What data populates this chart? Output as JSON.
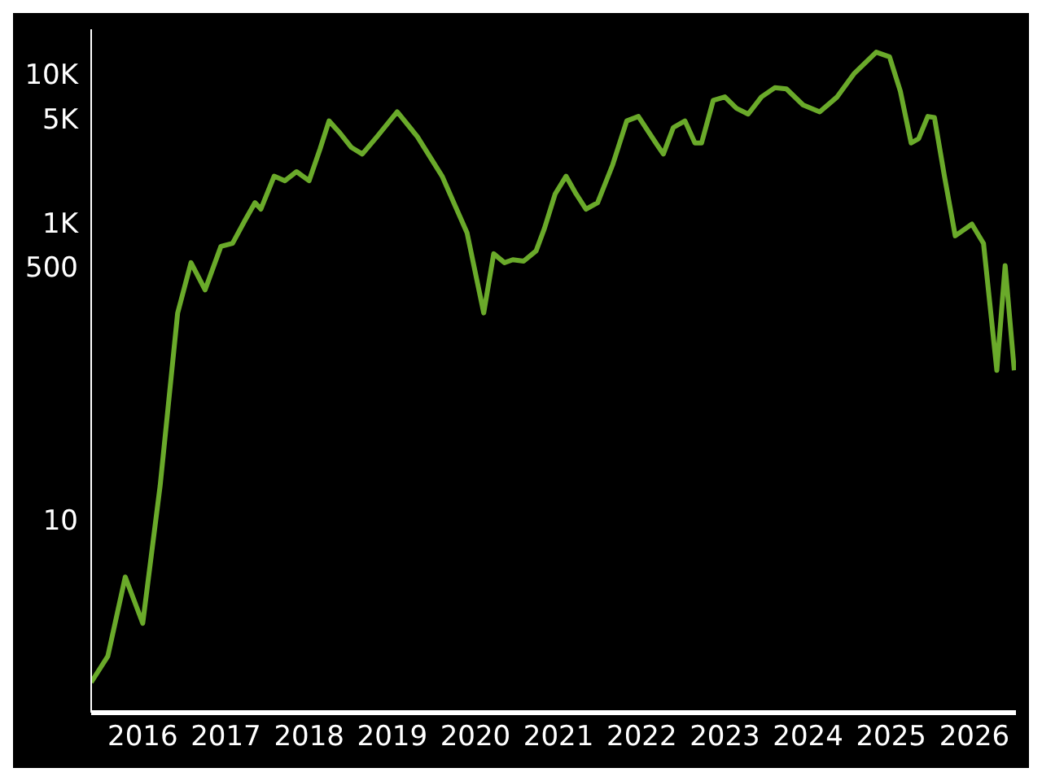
{
  "chart_data": {
    "type": "line",
    "log": "y",
    "grid": false,
    "marker": "none",
    "legend": false,
    "line_style": "solid",
    "x": [
      2015.38,
      2015.58,
      2015.79,
      2016.0,
      2016.21,
      2016.42,
      2016.58,
      2016.75,
      2016.94,
      2017.08,
      2017.23,
      2017.35,
      2017.42,
      2017.58,
      2017.71,
      2017.85,
      2018.0,
      2018.13,
      2018.24,
      2018.36,
      2018.51,
      2018.64,
      2018.82,
      2019.06,
      2019.3,
      2019.6,
      2019.9,
      2020.1,
      2020.22,
      2020.35,
      2020.45,
      2020.58,
      2020.73,
      2020.83,
      2020.96,
      2021.09,
      2021.21,
      2021.33,
      2021.47,
      2021.65,
      2021.82,
      2021.96,
      2022.17,
      2022.26,
      2022.38,
      2022.52,
      2022.64,
      2022.72,
      2022.86,
      2023.0,
      2023.14,
      2023.28,
      2023.44,
      2023.6,
      2023.74,
      2023.94,
      2024.14,
      2024.35,
      2024.55,
      2024.82,
      2024.98,
      2025.11,
      2025.24,
      2025.33,
      2025.44,
      2025.52,
      2025.64,
      2025.77,
      2025.97,
      2026.11,
      2026.27,
      2026.37,
      2026.48
    ],
    "series": [
      {
        "color": "#6aaa2a",
        "values": [
          0.8,
          1.2,
          4.1,
          2,
          17,
          246,
          536,
          352,
          690,
          723,
          1035,
          1360,
          1230,
          2050,
          1910,
          2200,
          1910,
          3100,
          4830,
          4070,
          3200,
          2890,
          3800,
          5560,
          3800,
          2050,
          851,
          246,
          616,
          536,
          561,
          549,
          644,
          911,
          1560,
          2050,
          1560,
          1230,
          1360,
          2440,
          4830,
          5180,
          3430,
          2890,
          4360,
          4830,
          3430,
          3430,
          6640,
          7010,
          5870,
          5370,
          7010,
          8080,
          7940,
          6190,
          5560,
          7010,
          10000,
          14030,
          13050,
          7660,
          3430,
          3670,
          5180,
          5090,
          2050,
          813,
          975,
          723,
          101,
          512,
          101
        ]
      }
    ],
    "xlim": [
      2015.38,
      2026.5
    ],
    "xticks": [
      2016,
      2017,
      2018,
      2019,
      2020,
      2021,
      2022,
      2023,
      2024,
      2025,
      2026
    ],
    "ylim": [
      0.5,
      20000
    ],
    "yticks": [
      10,
      500,
      {
        "value": 1000,
        "label": "1K"
      },
      {
        "value": 5000,
        "label": "5K"
      },
      {
        "value": 10000,
        "label": "10K"
      }
    ]
  }
}
